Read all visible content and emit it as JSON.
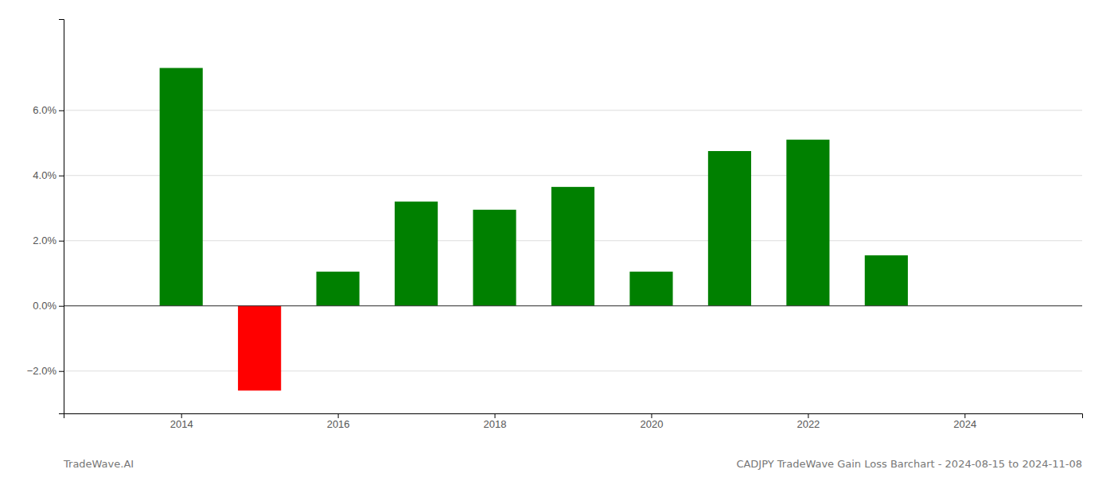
{
  "chart_data": {
    "type": "bar",
    "x": [
      2014,
      2015,
      2016,
      2017,
      2018,
      2019,
      2020,
      2021,
      2022,
      2023
    ],
    "values": [
      0.073,
      -0.026,
      0.0105,
      0.032,
      0.0295,
      0.0365,
      0.0105,
      0.0475,
      0.051,
      0.0155
    ],
    "colors": [
      "#008000",
      "#ff0000",
      "#008000",
      "#008000",
      "#008000",
      "#008000",
      "#008000",
      "#008000",
      "#008000",
      "#008000"
    ],
    "xlim": [
      2012.5,
      2025.5
    ],
    "xticks": [
      2014,
      2016,
      2018,
      2020,
      2022,
      2024
    ],
    "ylim": [
      -0.033,
      0.088
    ],
    "yticks": [
      {
        "value": -0.02,
        "label": "−2.0%"
      },
      {
        "value": 0,
        "label": "0.0%"
      },
      {
        "value": 0.02,
        "label": "2.0%"
      },
      {
        "value": 0.04,
        "label": "4.0%"
      },
      {
        "value": 0.06,
        "label": "6.0%"
      }
    ],
    "grid": true,
    "annotations": [
      "TradeWave.AI",
      "CADJPY TradeWave Gain Loss Barchart - 2024-08-15 to 2024-11-08"
    ]
  }
}
